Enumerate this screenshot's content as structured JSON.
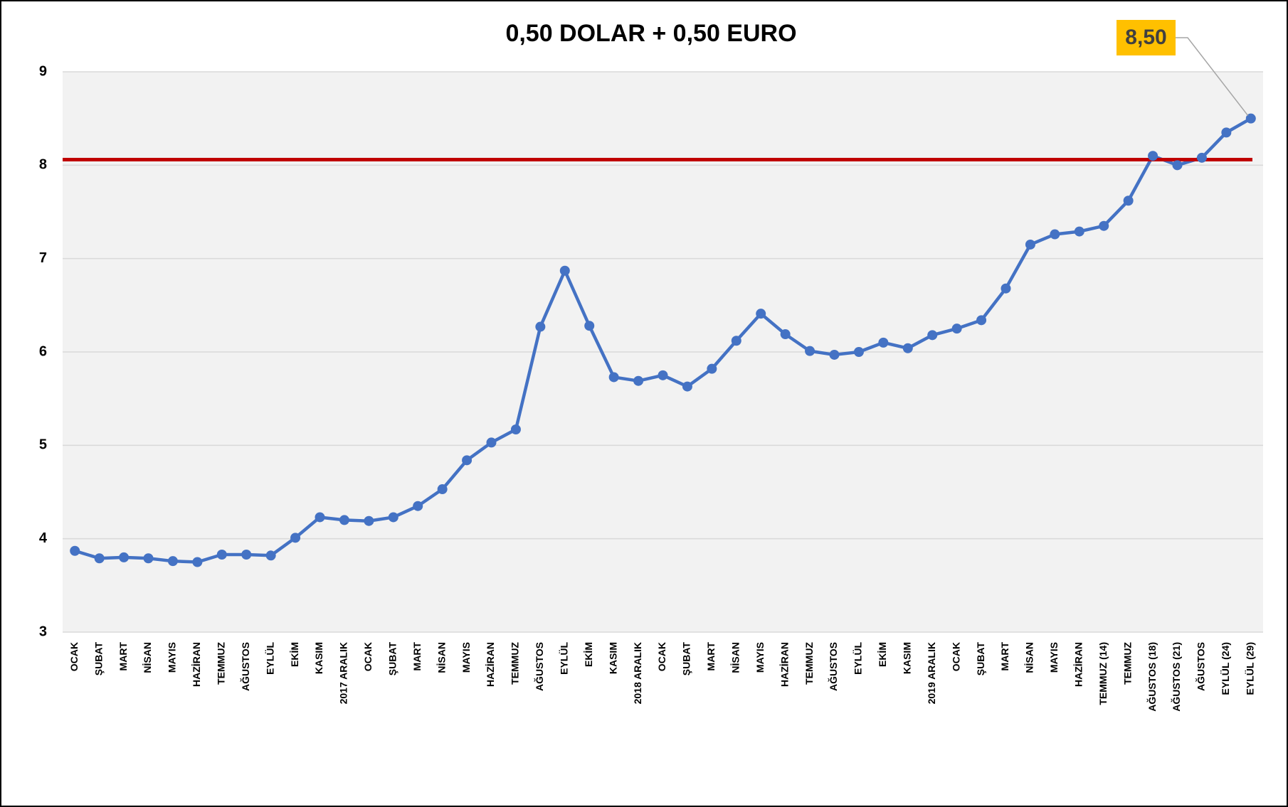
{
  "chart_data": {
    "type": "line",
    "title": "0,50 DOLAR + 0,50 EURO",
    "categories": [
      "OCAK",
      "ŞUBAT",
      "MART",
      "NİSAN",
      "MAYIS",
      "HAZİRAN",
      "TEMMUZ",
      "AĞUSTOS",
      "EYLÜL",
      "EKİM",
      "KASIM",
      "2017 ARALIK",
      "OCAK",
      "ŞUBAT",
      "MART",
      "NİSAN",
      "MAYIS",
      "HAZİRAN",
      "TEMMUZ",
      "AĞUSTOS",
      "EYLÜL",
      "EKİM",
      "KASIM",
      "2018 ARALIK",
      "OCAK",
      "ŞUBAT",
      "MART",
      "NİSAN",
      "MAYIS",
      "HAZİRAN",
      "TEMMUZ",
      "AĞUSTOS",
      "EYLÜL",
      "EKİM",
      "KASIM",
      "2019 ARALIK",
      "OCAK",
      "ŞUBAT",
      "MART",
      "NİSAN",
      "MAYIS",
      "HAZİRAN",
      "TEMMUZ (14)",
      "TEMMUZ",
      "AĞUSTOS (18)",
      "AĞUSTOS (21)",
      "AĞUSTOS",
      "EYLÜL (24)",
      "EYLÜL (29)"
    ],
    "values": [
      3.87,
      3.79,
      3.8,
      3.79,
      3.76,
      3.75,
      3.83,
      3.83,
      3.82,
      4.01,
      4.23,
      4.2,
      4.19,
      4.23,
      4.35,
      4.53,
      4.84,
      5.03,
      5.17,
      6.27,
      6.87,
      6.28,
      5.73,
      5.69,
      5.75,
      5.63,
      5.82,
      6.12,
      6.41,
      6.19,
      6.01,
      5.97,
      6.0,
      6.1,
      6.04,
      6.18,
      6.25,
      6.34,
      6.68,
      7.15,
      7.26,
      7.29,
      7.35,
      7.62,
      8.1,
      8.0,
      8.08,
      8.35,
      8.5
    ],
    "value_labels": [
      null,
      null,
      null,
      null,
      null,
      null,
      null,
      null,
      null,
      null,
      null,
      null,
      null,
      null,
      null,
      null,
      null,
      null,
      null,
      null,
      null,
      null,
      null,
      null,
      null,
      null,
      null,
      null,
      null,
      null,
      null,
      null,
      null,
      null,
      null,
      null,
      null,
      null,
      null,
      null,
      null,
      null,
      null,
      null,
      null,
      null,
      null,
      null,
      "8,50"
    ],
    "color": "#4472c4",
    "reference_line": {
      "value": 8.06,
      "color": "#c00000"
    },
    "ylim": [
      3,
      9
    ],
    "yticks": [
      3,
      4,
      5,
      6,
      7,
      8,
      9
    ],
    "grid": true
  }
}
